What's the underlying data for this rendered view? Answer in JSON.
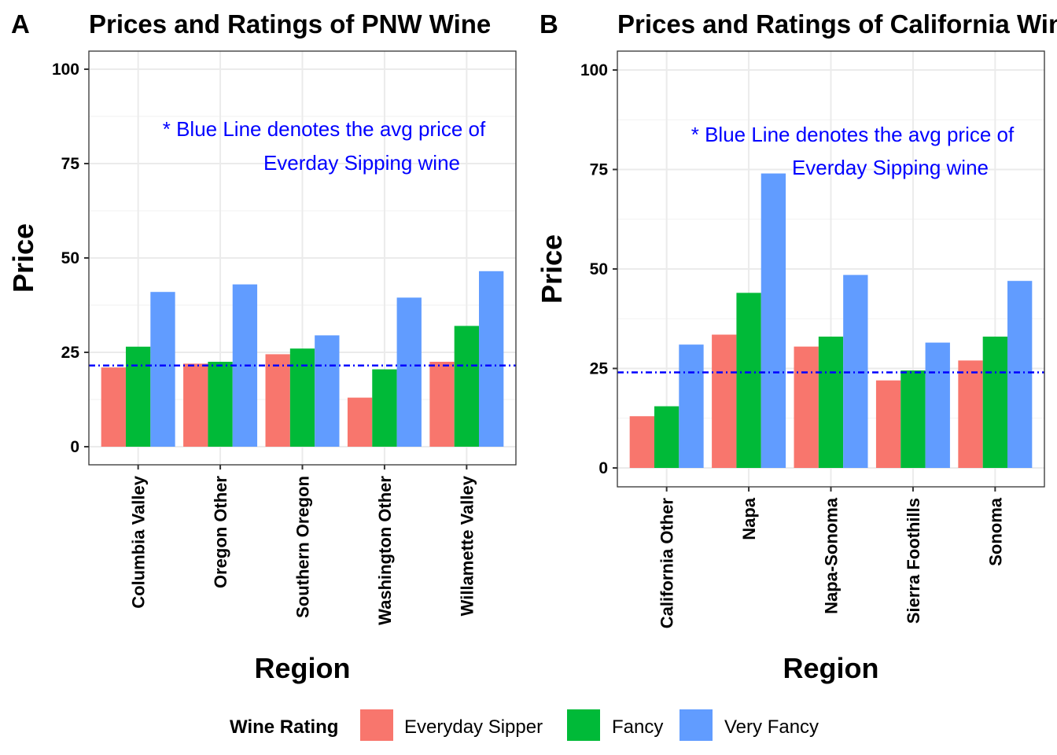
{
  "legend": {
    "title": "Wine Rating",
    "entries": [
      {
        "label": "Everyday Sipper",
        "color": "#F8766D"
      },
      {
        "label": "Fancy",
        "color": "#00BA38"
      },
      {
        "label": "Very Fancy",
        "color": "#619CFF"
      }
    ]
  },
  "chart_data": [
    {
      "panel": "A",
      "type": "bar",
      "title": "Prices and Ratings of PNW Wine",
      "xlabel": "Region",
      "ylabel": "Price",
      "ylim": [
        0,
        100
      ],
      "yticks": [
        0,
        25,
        50,
        75,
        100
      ],
      "grid": true,
      "categories": [
        "Columbia Valley",
        "Oregon Other",
        "Southern Oregon",
        "Washington Other",
        "Willamette Valley"
      ],
      "series": [
        {
          "name": "Everyday Sipper",
          "values": [
            21,
            22,
            24.5,
            13,
            22.5
          ]
        },
        {
          "name": "Fancy",
          "values": [
            26.5,
            22.5,
            26,
            20.5,
            32
          ]
        },
        {
          "name": "Very Fancy",
          "values": [
            41,
            43,
            29.5,
            39.5,
            46.5
          ]
        }
      ],
      "avg_line": 21.5,
      "annotation": [
        "* Blue Line denotes the avg price of",
        "Everday Sipping wine"
      ]
    },
    {
      "panel": "B",
      "type": "bar",
      "title": "Prices and Ratings of California Wine",
      "xlabel": "Region",
      "ylabel": "Price",
      "ylim": [
        0,
        100
      ],
      "yticks": [
        0,
        25,
        50,
        75,
        100
      ],
      "grid": true,
      "categories": [
        "California Other",
        "Napa",
        "Napa-Sonoma",
        "Sierra Foothills",
        "Sonoma"
      ],
      "series": [
        {
          "name": "Everyday Sipper",
          "values": [
            13,
            33.5,
            30.5,
            22,
            27
          ]
        },
        {
          "name": "Fancy",
          "values": [
            15.5,
            44,
            33,
            24.5,
            33
          ]
        },
        {
          "name": "Very Fancy",
          "values": [
            31,
            74,
            48.5,
            31.5,
            47
          ]
        }
      ],
      "avg_line": 24,
      "annotation": [
        "* Blue Line denotes the avg price of",
        "Everday Sipping wine"
      ]
    }
  ]
}
